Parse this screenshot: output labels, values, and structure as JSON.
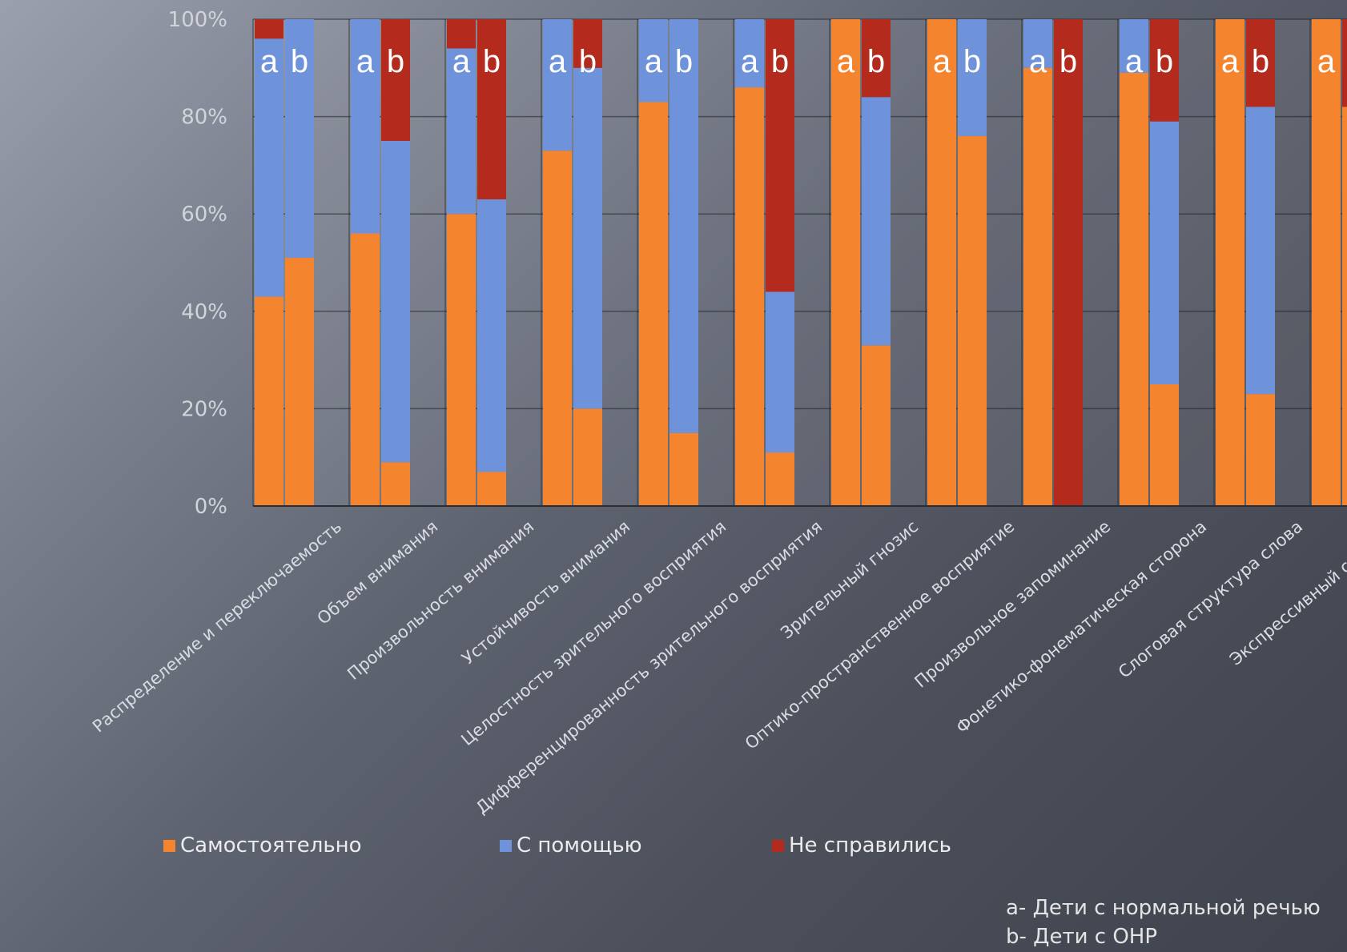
{
  "chart_data": {
    "type": "bar",
    "stacked": true,
    "normalized": true,
    "ylim": [
      0,
      100
    ],
    "yticks": [
      "0%",
      "20%",
      "40%",
      "60%",
      "80%",
      "100%"
    ],
    "pair_labels": [
      "a",
      "b"
    ],
    "categories": [
      "Распределение и переключаемость",
      "Объем внимания",
      "Произвольность внимания",
      "Устойчивость внимания",
      "Целостность зрительного восприятия",
      "Дифференцированность зрительного восприятия",
      "Зрительный гнозис",
      "Оптико-пространственное восприятие",
      "Произвольное запоминание",
      "Фонетико-фонематическая сторона",
      "Слоговая структура слова",
      "Экспрессивный словарь"
    ],
    "series": [
      {
        "name": "Самостоятельно",
        "color": "#f5842f",
        "a": [
          43,
          56,
          60,
          73,
          83,
          86,
          100,
          100,
          90,
          89,
          100,
          100
        ],
        "b": [
          51,
          9,
          7,
          20,
          15,
          11,
          33,
          76,
          0,
          25,
          23,
          82
        ]
      },
      {
        "name": "С помощью",
        "color": "#6f93da",
        "a": [
          53,
          44,
          34,
          27,
          17,
          14,
          0,
          0,
          10,
          11,
          0,
          0
        ],
        "b": [
          49,
          66,
          56,
          70,
          85,
          33,
          51,
          24,
          0,
          54,
          59,
          0
        ]
      },
      {
        "name": "Не справились",
        "color": "#b42a1c",
        "a": [
          4,
          0,
          6,
          0,
          0,
          0,
          0,
          0,
          0,
          0,
          0,
          0
        ],
        "b": [
          0,
          25,
          37,
          10,
          0,
          56,
          16,
          0,
          100,
          21,
          18,
          18
        ]
      }
    ]
  },
  "note": {
    "line_a": "a- Дети с нормальной речью",
    "line_b": "b- Дети с ОНР"
  }
}
